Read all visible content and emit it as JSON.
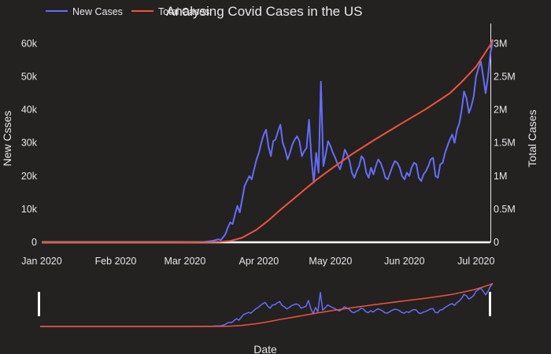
{
  "chart_data": {
    "type": "line",
    "title": "Analysing Covid Cases in the US",
    "xlabel": "Date",
    "ylabel": "New Csses",
    "y2label": "Total Cases",
    "x_ticks": [
      "Jan 2020",
      "Feb 2020",
      "Mar 2020",
      "Apr 2020",
      "May 2020",
      "Jun 2020",
      "Jul 2020"
    ],
    "y_ticks": [
      "0",
      "10k",
      "20k",
      "30k",
      "40k",
      "50k",
      "60k"
    ],
    "y2_ticks": [
      "0",
      "0.5M",
      "1M",
      "1.5M",
      "2M",
      "2.5M",
      "3M"
    ],
    "ylim": [
      0,
      66000
    ],
    "y2lim": [
      0,
      3300000
    ],
    "xlim": [
      "2020-01-01",
      "2020-07-07"
    ],
    "legend_position": "top-left",
    "range_slider": true,
    "colors": {
      "new_cases": "#636efa",
      "total_cases": "#ef553b",
      "background": "#242121",
      "zero_line": "#ffffff"
    },
    "series": [
      {
        "name": "New Cases",
        "axis": "left",
        "points": [
          [
            "2020-01-01",
            0
          ],
          [
            "2020-01-10",
            0
          ],
          [
            "2020-01-20",
            1
          ],
          [
            "2020-01-25",
            1
          ],
          [
            "2020-02-01",
            1
          ],
          [
            "2020-02-10",
            2
          ],
          [
            "2020-02-20",
            3
          ],
          [
            "2020-02-28",
            5
          ],
          [
            "2020-03-03",
            20
          ],
          [
            "2020-03-06",
            60
          ],
          [
            "2020-03-09",
            150
          ],
          [
            "2020-03-11",
            300
          ],
          [
            "2020-03-13",
            500
          ],
          [
            "2020-03-15",
            900
          ],
          [
            "2020-03-16",
            700
          ],
          [
            "2020-03-17",
            1500
          ],
          [
            "2020-03-18",
            2500
          ],
          [
            "2020-03-19",
            4500
          ],
          [
            "2020-03-20",
            6000
          ],
          [
            "2020-03-21",
            5500
          ],
          [
            "2020-03-22",
            8500
          ],
          [
            "2020-03-23",
            11000
          ],
          [
            "2020-03-24",
            9000
          ],
          [
            "2020-03-25",
            13000
          ],
          [
            "2020-03-26",
            17000
          ],
          [
            "2020-03-27",
            18500
          ],
          [
            "2020-03-28",
            20000
          ],
          [
            "2020-03-29",
            19000
          ],
          [
            "2020-03-30",
            22000
          ],
          [
            "2020-03-31",
            25000
          ],
          [
            "2020-04-01",
            27000
          ],
          [
            "2020-04-02",
            30000
          ],
          [
            "2020-04-03",
            32500
          ],
          [
            "2020-04-04",
            34000
          ],
          [
            "2020-04-05",
            29000
          ],
          [
            "2020-04-06",
            26000
          ],
          [
            "2020-04-07",
            30500
          ],
          [
            "2020-04-08",
            31000
          ],
          [
            "2020-04-09",
            33500
          ],
          [
            "2020-04-10",
            35500
          ],
          [
            "2020-04-11",
            30000
          ],
          [
            "2020-04-12",
            28000
          ],
          [
            "2020-04-13",
            25000
          ],
          [
            "2020-04-14",
            27000
          ],
          [
            "2020-04-15",
            29500
          ],
          [
            "2020-04-16",
            31000
          ],
          [
            "2020-04-17",
            32000
          ],
          [
            "2020-04-18",
            30500
          ],
          [
            "2020-04-19",
            26000
          ],
          [
            "2020-04-20",
            27500
          ],
          [
            "2020-04-21",
            28500
          ],
          [
            "2020-04-22",
            37000
          ],
          [
            "2020-04-23",
            25500
          ],
          [
            "2020-04-24",
            18000
          ],
          [
            "2020-04-25",
            27000
          ],
          [
            "2020-04-26",
            21000
          ],
          [
            "2020-04-27",
            48500
          ],
          [
            "2020-04-28",
            23000
          ],
          [
            "2020-04-29",
            26500
          ],
          [
            "2020-04-30",
            30500
          ],
          [
            "2020-05-01",
            29000
          ],
          [
            "2020-05-02",
            27000
          ],
          [
            "2020-05-03",
            25500
          ],
          [
            "2020-05-04",
            23500
          ],
          [
            "2020-05-05",
            22000
          ],
          [
            "2020-05-06",
            24500
          ],
          [
            "2020-05-07",
            28000
          ],
          [
            "2020-05-08",
            26500
          ],
          [
            "2020-05-09",
            24500
          ],
          [
            "2020-05-10",
            21000
          ],
          [
            "2020-05-11",
            19500
          ],
          [
            "2020-05-12",
            21500
          ],
          [
            "2020-05-13",
            23000
          ],
          [
            "2020-05-14",
            26000
          ],
          [
            "2020-05-15",
            25000
          ],
          [
            "2020-05-16",
            21000
          ],
          [
            "2020-05-17",
            19500
          ],
          [
            "2020-05-18",
            22500
          ],
          [
            "2020-05-19",
            20500
          ],
          [
            "2020-05-20",
            23000
          ],
          [
            "2020-05-21",
            25000
          ],
          [
            "2020-05-22",
            24000
          ],
          [
            "2020-05-23",
            22000
          ],
          [
            "2020-05-24",
            19500
          ],
          [
            "2020-05-25",
            19000
          ],
          [
            "2020-05-26",
            21000
          ],
          [
            "2020-05-27",
            23000
          ],
          [
            "2020-05-28",
            24500
          ],
          [
            "2020-05-29",
            24000
          ],
          [
            "2020-05-30",
            22500
          ],
          [
            "2020-05-31",
            20000
          ],
          [
            "2020-06-01",
            19000
          ],
          [
            "2020-06-02",
            21000
          ],
          [
            "2020-06-03",
            20000
          ],
          [
            "2020-06-04",
            22500
          ],
          [
            "2020-06-05",
            24000
          ],
          [
            "2020-06-06",
            23500
          ],
          [
            "2020-06-07",
            19500
          ],
          [
            "2020-06-08",
            18500
          ],
          [
            "2020-06-09",
            20500
          ],
          [
            "2020-06-10",
            21500
          ],
          [
            "2020-06-11",
            23000
          ],
          [
            "2020-06-12",
            25000
          ],
          [
            "2020-06-13",
            25500
          ],
          [
            "2020-06-14",
            20000
          ],
          [
            "2020-06-15",
            19500
          ],
          [
            "2020-06-16",
            23500
          ],
          [
            "2020-06-17",
            24000
          ],
          [
            "2020-06-18",
            27000
          ],
          [
            "2020-06-19",
            29000
          ],
          [
            "2020-06-20",
            31000
          ],
          [
            "2020-06-21",
            32500
          ],
          [
            "2020-06-22",
            30000
          ],
          [
            "2020-06-23",
            34000
          ],
          [
            "2020-06-24",
            36000
          ],
          [
            "2020-06-25",
            40000
          ],
          [
            "2020-06-26",
            45500
          ],
          [
            "2020-06-27",
            43500
          ],
          [
            "2020-06-28",
            39000
          ],
          [
            "2020-06-29",
            41000
          ],
          [
            "2020-06-30",
            44000
          ],
          [
            "2020-07-01",
            50000
          ],
          [
            "2020-07-02",
            52500
          ],
          [
            "2020-07-03",
            54500
          ],
          [
            "2020-07-04",
            50000
          ],
          [
            "2020-07-05",
            45000
          ],
          [
            "2020-07-06",
            50000
          ],
          [
            "2020-07-07",
            57000
          ],
          [
            "2020-07-08",
            61000
          ]
        ]
      },
      {
        "name": "Total Cases",
        "axis": "right",
        "points": [
          [
            "2020-01-01",
            0
          ],
          [
            "2020-02-01",
            10
          ],
          [
            "2020-03-01",
            100
          ],
          [
            "2020-03-10",
            1000
          ],
          [
            "2020-03-15",
            5000
          ],
          [
            "2020-03-20",
            20000
          ],
          [
            "2020-03-25",
            70000
          ],
          [
            "2020-03-31",
            190000
          ],
          [
            "2020-04-05",
            330000
          ],
          [
            "2020-04-10",
            490000
          ],
          [
            "2020-04-15",
            640000
          ],
          [
            "2020-04-20",
            790000
          ],
          [
            "2020-04-25",
            940000
          ],
          [
            "2020-05-01",
            1100000
          ],
          [
            "2020-05-10",
            1330000
          ],
          [
            "2020-05-20",
            1560000
          ],
          [
            "2020-06-01",
            1820000
          ],
          [
            "2020-06-10",
            2010000
          ],
          [
            "2020-06-20",
            2250000
          ],
          [
            "2020-06-25",
            2420000
          ],
          [
            "2020-07-01",
            2650000
          ],
          [
            "2020-07-07",
            2980000
          ],
          [
            "2020-07-08",
            3060000
          ]
        ]
      }
    ]
  }
}
